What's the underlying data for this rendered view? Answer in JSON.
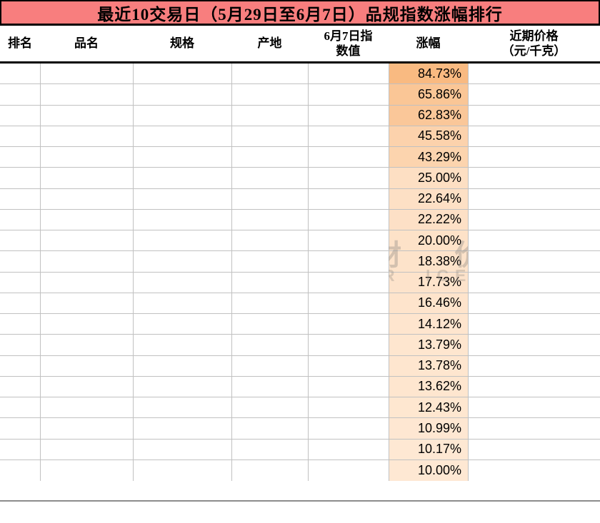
{
  "title": {
    "text": "最近10交易日（5月29日至6月7日）品规指数涨幅排行"
  },
  "header": {
    "rank": "排名",
    "name": "品名",
    "spec": "规格",
    "origin": "产地",
    "index": "6月7日指\n数值",
    "gain": "涨幅",
    "price": "近期价格\n（元/千克）"
  },
  "rows": [
    {
      "gain_label": "84.73%",
      "gain_value": 84.73
    },
    {
      "gain_label": "65.86%",
      "gain_value": 65.86
    },
    {
      "gain_label": "62.83%",
      "gain_value": 62.83
    },
    {
      "gain_label": "45.58%",
      "gain_value": 45.58
    },
    {
      "gain_label": "43.29%",
      "gain_value": 43.29
    },
    {
      "gain_label": "25.00%",
      "gain_value": 25.0
    },
    {
      "gain_label": "22.64%",
      "gain_value": 22.64
    },
    {
      "gain_label": "22.22%",
      "gain_value": 22.22
    },
    {
      "gain_label": "20.00%",
      "gain_value": 20.0
    },
    {
      "gain_label": "18.38%",
      "gain_value": 18.38
    },
    {
      "gain_label": "17.73%",
      "gain_value": 17.73
    },
    {
      "gain_label": "16.46%",
      "gain_value": 16.46
    },
    {
      "gain_label": "14.12%",
      "gain_value": 14.12
    },
    {
      "gain_label": "13.79%",
      "gain_value": 13.79
    },
    {
      "gain_label": "13.78%",
      "gain_value": 13.78
    },
    {
      "gain_label": "13.62%",
      "gain_value": 13.62
    },
    {
      "gain_label": "12.43%",
      "gain_value": 12.43
    },
    {
      "gain_label": "10.99%",
      "gain_value": 10.99
    },
    {
      "gain_label": "10.17%",
      "gain_value": 10.17
    },
    {
      "gain_label": "10.00%",
      "gain_value": 10.0
    }
  ],
  "color_scale": {
    "column": "涨幅",
    "style": "2-color-scale",
    "min_value": 10.0,
    "max_value": 84.73,
    "min_color": "#FEE8D3",
    "max_color": "#F9BA81"
  },
  "colors": {
    "title_bg": "#F87E7E",
    "border_black": "#000000",
    "gridline": "#C1C1C1",
    "text": "#000000",
    "footer_line": "#8C8C8C"
  },
  "watermark": {
    "cjk_fragment": "材价",
    "latin_fragment_1": "R",
    "latin_fragment_2": "ICE"
  },
  "chart_data": {
    "type": "table",
    "title": "最近10交易日（5月29日至6月7日）品规指数涨幅排行",
    "columns": [
      "排名",
      "品名",
      "规格",
      "产地",
      "6月7日指数值",
      "涨幅",
      "近期价格（元/千克）"
    ],
    "gain_column_values_percent": [
      84.73,
      65.86,
      62.83,
      45.58,
      43.29,
      25.0,
      22.64,
      22.22,
      20.0,
      18.38,
      17.73,
      16.46,
      14.12,
      13.79,
      13.78,
      13.62,
      12.43,
      10.99,
      10.17,
      10.0
    ],
    "other_columns": "blank in screenshot",
    "conditional_format": {
      "column": "涨幅",
      "style": "2-color-scale",
      "min_color": "#FEE8D3",
      "max_color": "#F9BA81",
      "min_value": 10.0,
      "max_value": 84.73
    },
    "layout_hints": {
      "gridlines": true,
      "row_count": 20
    }
  }
}
